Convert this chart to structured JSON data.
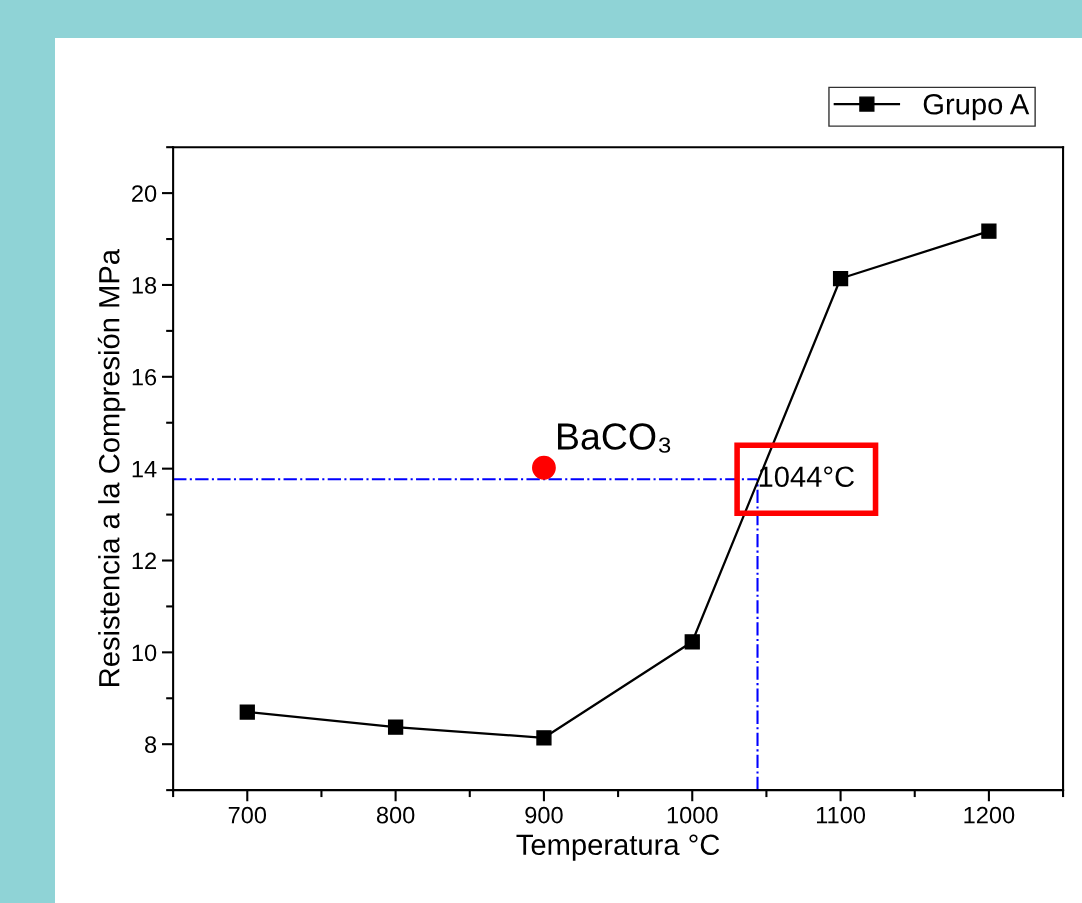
{
  "chart_data": {
    "type": "line",
    "xlabel": "Temperatura °C",
    "ylabel": "Resistencia a la Compresión MPa",
    "x": [
      700,
      800,
      900,
      1000,
      1100,
      1200
    ],
    "series": [
      {
        "name": "Grupo A",
        "color": "#000000",
        "values": [
          8.7,
          8.37,
          8.14,
          10.23,
          18.14,
          19.17
        ],
        "marker": "square",
        "line_style": "solid"
      },
      {
        "type": "scatter",
        "color": "#ff0000",
        "x": [
          900
        ],
        "values": [
          14.02
        ],
        "marker": "circle"
      }
    ],
    "xlim": [
      650,
      1250
    ],
    "xticks": [
      700,
      800,
      900,
      1000,
      1100,
      1200
    ],
    "ylim": [
      7,
      21
    ],
    "yticks": [
      8,
      10,
      12,
      14,
      16,
      18,
      20
    ],
    "ref_lines": [
      {
        "axis": "y",
        "value": 13.77,
        "color": "#0000ff",
        "line_style": "dashdot"
      },
      {
        "axis": "x",
        "value": 1044,
        "color": "#0000ff",
        "line_style": "dashdot"
      }
    ],
    "annotations": [
      "BaCO₃",
      {
        "text": "1044°C",
        "x": 1044,
        "y": 13.77
      }
    ],
    "legend": "top right",
    "grid": false
  }
}
